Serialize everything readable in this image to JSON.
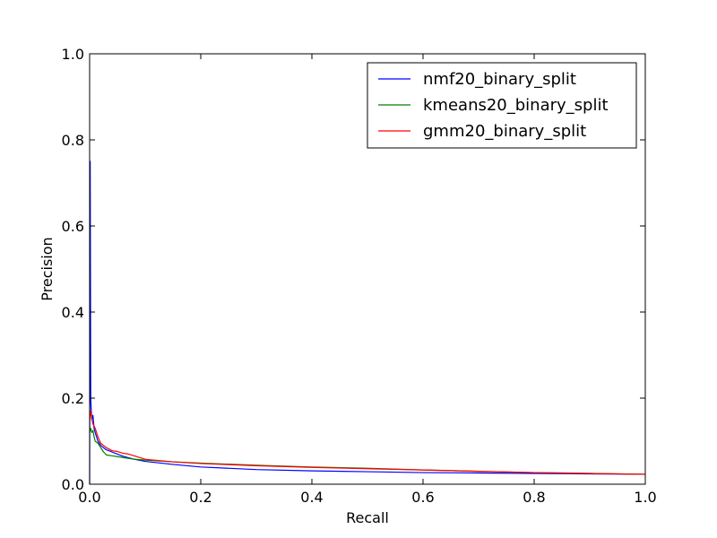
{
  "chart_data": {
    "type": "line",
    "xlabel": "Recall",
    "ylabel": "Precision",
    "xlim": [
      0.0,
      1.0
    ],
    "ylim": [
      0.0,
      1.0
    ],
    "xticks": [
      "0.0",
      "0.2",
      "0.4",
      "0.6",
      "0.8",
      "1.0"
    ],
    "yticks": [
      "0.0",
      "0.2",
      "0.4",
      "0.6",
      "0.8",
      "1.0"
    ],
    "grid": false,
    "legend_position": "top-right",
    "series": [
      {
        "name": "nmf20_binary_split",
        "color": "#0000ff",
        "x": [
          0.0,
          0.001,
          0.002,
          0.003,
          0.004,
          0.006,
          0.008,
          0.01,
          0.015,
          0.02,
          0.03,
          0.04,
          0.05,
          0.06,
          0.08,
          0.1,
          0.15,
          0.2,
          0.3,
          0.4,
          0.5,
          0.6,
          0.7,
          0.8,
          0.9,
          1.0
        ],
        "y": [
          0.0,
          0.75,
          0.2,
          0.17,
          0.15,
          0.16,
          0.13,
          0.12,
          0.1,
          0.09,
          0.08,
          0.075,
          0.07,
          0.065,
          0.058,
          0.053,
          0.046,
          0.04,
          0.034,
          0.031,
          0.029,
          0.027,
          0.026,
          0.025,
          0.024,
          0.023
        ]
      },
      {
        "name": "kmeans20_binary_split",
        "color": "#008000",
        "x": [
          0.0,
          0.002,
          0.004,
          0.006,
          0.008,
          0.01,
          0.015,
          0.02,
          0.025,
          0.03,
          0.04,
          0.05,
          0.06,
          0.08,
          0.1,
          0.15,
          0.2,
          0.3,
          0.4,
          0.5,
          0.6,
          0.7,
          0.8,
          0.9,
          1.0
        ],
        "y": [
          0.12,
          0.13,
          0.12,
          0.125,
          0.11,
          0.1,
          0.095,
          0.085,
          0.075,
          0.068,
          0.066,
          0.064,
          0.062,
          0.058,
          0.056,
          0.052,
          0.049,
          0.044,
          0.04,
          0.037,
          0.033,
          0.03,
          0.027,
          0.025,
          0.023
        ]
      },
      {
        "name": "gmm20_binary_split",
        "color": "#ff0000",
        "x": [
          0.0,
          0.002,
          0.004,
          0.006,
          0.008,
          0.01,
          0.015,
          0.02,
          0.03,
          0.04,
          0.05,
          0.06,
          0.07,
          0.08,
          0.1,
          0.15,
          0.2,
          0.3,
          0.4,
          0.5,
          0.6,
          0.7,
          0.8,
          0.9,
          1.0
        ],
        "y": [
          0.15,
          0.17,
          0.15,
          0.14,
          0.135,
          0.13,
          0.11,
          0.095,
          0.085,
          0.078,
          0.076,
          0.072,
          0.07,
          0.066,
          0.058,
          0.052,
          0.048,
          0.043,
          0.039,
          0.036,
          0.033,
          0.03,
          0.027,
          0.025,
          0.023
        ]
      }
    ]
  }
}
